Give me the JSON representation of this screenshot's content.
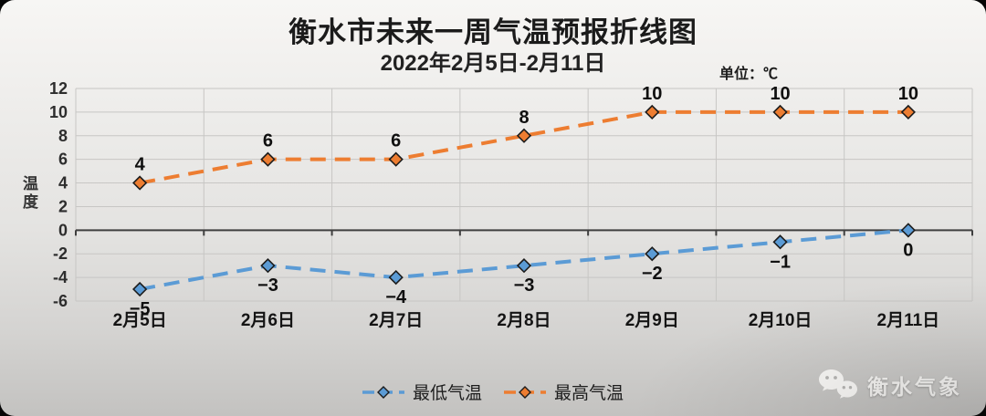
{
  "chart": {
    "title": "衡水市未来一周气温预报折线图",
    "subtitle": "2022年2月5日-2月11日",
    "unit_label": "单位：℃",
    "y_axis_title": "温度"
  },
  "chart_data": {
    "type": "line",
    "title": "衡水市未来一周气温预报折线图",
    "subtitle": "2022年2月5日-2月11日",
    "ylabel": "温度",
    "unit": "℃",
    "categories": [
      "2月5日",
      "2月6日",
      "2月7日",
      "2月8日",
      "2月9日",
      "2月10日",
      "2月11日"
    ],
    "series": [
      {
        "name": "最低气温",
        "values": [
          -5,
          -3,
          -4,
          -3,
          -2,
          -1,
          0
        ],
        "labels": [
          "−5",
          "−3",
          "−4",
          "−3",
          "−2",
          "−1",
          "0"
        ],
        "color": "#5b9bd5",
        "label_position": "below"
      },
      {
        "name": "最高气温",
        "values": [
          4,
          6,
          6,
          8,
          10,
          10,
          10
        ],
        "labels": [
          "4",
          "6",
          "6",
          "8",
          "10",
          "10",
          "10"
        ],
        "color": "#ed7d31",
        "label_position": "above"
      }
    ],
    "ylim": [
      -6,
      12
    ],
    "y_ticks": [
      12,
      10,
      8,
      6,
      4,
      2,
      0,
      -2,
      -4,
      -6
    ],
    "grid": true,
    "line_style": "dashed",
    "marker": "diamond",
    "legend_position": "bottom"
  },
  "colors": {
    "grid": "#c7c6c4",
    "zero_axis": "#3f3f3f",
    "marker_outline": "#1c1c1c"
  },
  "branding": {
    "name": "衡水气象",
    "icon": "wechat-icon"
  }
}
